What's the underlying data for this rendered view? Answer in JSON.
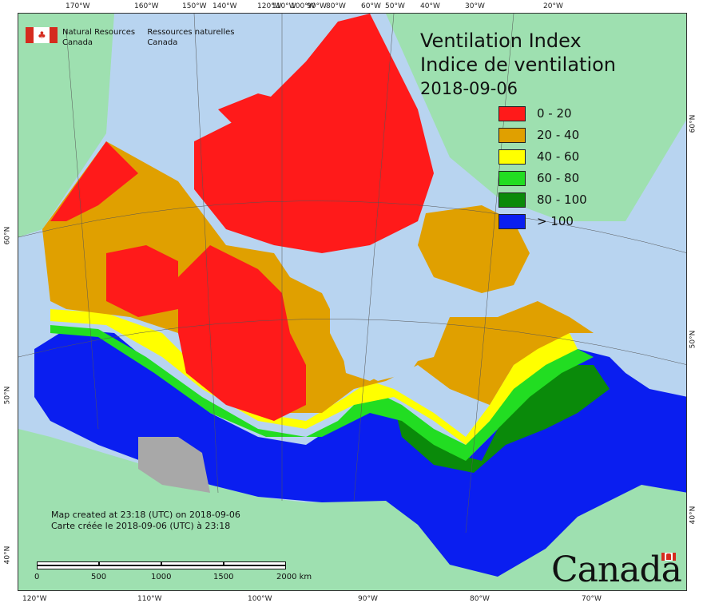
{
  "logo": {
    "en_line1": "Natural Resources",
    "en_line2": "Canada",
    "fr_line1": "Ressources naturelles",
    "fr_line2": "Canada",
    "icon": "canada-flag-icon"
  },
  "title": {
    "line1": "Ventilation Index",
    "line2": "Indice de ventilation",
    "date": "2018-09-06"
  },
  "legend": [
    {
      "label": "0 - 20",
      "color": "#ff1a1a"
    },
    {
      "label": "20 - 40",
      "color": "#e0a000"
    },
    {
      "label": "40 - 60",
      "color": "#ffff00"
    },
    {
      "label": "60 - 80",
      "color": "#22dd22"
    },
    {
      "label": "80 - 100",
      "color": "#0a8a0a"
    },
    {
      "label": "> 100",
      "color": "#0a1ef0"
    }
  ],
  "created": {
    "en": "Map created at 23:18 (UTC) on 2018-09-06",
    "fr": "Carte créée le 2018-09-06 (UTC) à 23:18"
  },
  "scalebar": {
    "labels": [
      "0",
      "500",
      "1000",
      "1500",
      "2000 km"
    ]
  },
  "ticks": {
    "top": [
      "170°W",
      "160°W",
      "150°W",
      "140°W",
      "120°W",
      "110°W",
      "100°W",
      "90°W",
      "80°W",
      "60°W",
      "50°W",
      "40°W",
      "30°W",
      "20°W"
    ],
    "bottom": [
      "120°W",
      "110°W",
      "100°W",
      "90°W",
      "80°W",
      "70°W"
    ],
    "left": [
      "60°N",
      "50°N",
      "40°N"
    ],
    "right": [
      "60°N",
      "50°N",
      "40°N"
    ]
  },
  "wordmark": "Canada",
  "colors": {
    "water": "#b8d4f0",
    "land_outside": "#9ee0b0",
    "nodata": "#a8a8a8"
  }
}
